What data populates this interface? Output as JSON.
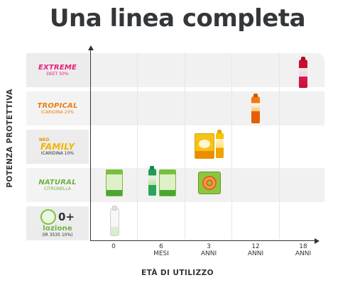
{
  "title": "Una linea completa",
  "colors": {
    "extreme": "#e8207a",
    "tropical": "#f07a12",
    "family": "#f3b400",
    "natural": "#6cb33f",
    "zero": "#6cb33f"
  },
  "rows": [
    {
      "name": "EXTREME",
      "sub": "DEET 50%",
      "row_bg": "shade",
      "label_bg": "#ececec"
    },
    {
      "name": "TROPICAL",
      "sub": "ICARIDINA 20%",
      "row_bg": "shade",
      "label_bg": "#f3f3f3"
    },
    {
      "prefix": "NEO",
      "name": "FAMILY",
      "sub": "ICARIDINA 10%",
      "row_bg": "white",
      "label_bg": "#ececec"
    },
    {
      "name": "NATURAL",
      "sub": "CITRONELLA",
      "row_bg": "shade",
      "label_bg": "#f3f3f3"
    },
    {
      "badge": "0+",
      "name": "lozione",
      "sub": "(IR 3535 10%)",
      "row_bg": "white",
      "label_bg": "#ececec"
    }
  ],
  "chart_data": {
    "type": "scatter",
    "title": "Una linea completa",
    "xlabel": "ETÀ DI UTILIZZO",
    "ylabel": "POTENZA PROTETTIVA",
    "x_ticks": [
      {
        "line1": "0",
        "line2": ""
      },
      {
        "line1": "6",
        "line2": "MESI"
      },
      {
        "line1": "3",
        "line2": "ANNI"
      },
      {
        "line1": "12",
        "line2": "ANNI"
      },
      {
        "line1": "18",
        "line2": "ANNI"
      }
    ],
    "categories_y": [
      "lozione 0+",
      "NATURAL",
      "NEO FAMILY",
      "TROPICAL",
      "EXTREME"
    ],
    "points": [
      {
        "product": "EXTREME",
        "x": "18 ANNI",
        "items": [
          "can-red"
        ]
      },
      {
        "product": "TROPICAL",
        "x": "12 ANNI",
        "items": [
          "can-orange"
        ]
      },
      {
        "product": "NEO FAMILY",
        "x": "3 ANNI",
        "items": [
          "box-yellow",
          "can-yellow"
        ]
      },
      {
        "product": "NATURAL",
        "x": "0",
        "items": [
          "box-green"
        ]
      },
      {
        "product": "NATURAL",
        "x": "6 MESI",
        "items": [
          "can-green",
          "box-green"
        ]
      },
      {
        "product": "NATURAL",
        "x": "3 ANNI",
        "items": [
          "coil-box"
        ]
      },
      {
        "product": "lozione 0+",
        "x": "0",
        "items": [
          "bottle-white"
        ]
      }
    ],
    "grid": true,
    "legend": "left"
  }
}
